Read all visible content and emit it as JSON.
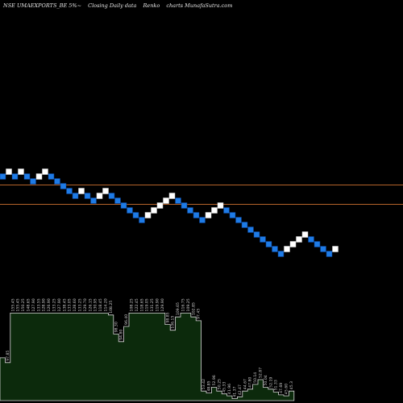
{
  "header": {
    "symbol": "NSE UMAEXPORTS_BE 5%~",
    "description": "Closing Daily data",
    "chart_kind": "Renko",
    "brand": "charts MunafaSutra.com"
  },
  "colors": {
    "background": "#000000",
    "up_brick": "#ffffff",
    "down_brick": "#1e7be6",
    "brick_edge": "#0a3d8a",
    "ref_line": "#b4632a",
    "volume_fill": "#0c2a0c",
    "volume_edge": "#d8d8d8",
    "label_text": "#d0d0d0"
  },
  "chart_data": {
    "type": "renko",
    "title": "NSE UMAEXPORTS_BE 5%~ Closing Daily data Renko charts MunafaSutra.com",
    "reference_lines": [
      {
        "name": "upper"
      },
      {
        "name": "lower"
      }
    ],
    "bricks": [
      {
        "i": 0,
        "level": 0,
        "dir": "down"
      },
      {
        "i": 1,
        "level": 1,
        "dir": "up"
      },
      {
        "i": 2,
        "level": 0,
        "dir": "down"
      },
      {
        "i": 3,
        "level": 1,
        "dir": "up"
      },
      {
        "i": 4,
        "level": 0,
        "dir": "down"
      },
      {
        "i": 5,
        "level": -1,
        "dir": "down"
      },
      {
        "i": 6,
        "level": 0,
        "dir": "up"
      },
      {
        "i": 7,
        "level": 1,
        "dir": "up"
      },
      {
        "i": 8,
        "level": 0,
        "dir": "down"
      },
      {
        "i": 9,
        "level": -1,
        "dir": "down"
      },
      {
        "i": 10,
        "level": -2,
        "dir": "down"
      },
      {
        "i": 11,
        "level": -3,
        "dir": "down"
      },
      {
        "i": 12,
        "level": -4,
        "dir": "down"
      },
      {
        "i": 13,
        "level": -3,
        "dir": "up"
      },
      {
        "i": 14,
        "level": -4,
        "dir": "down"
      },
      {
        "i": 15,
        "level": -5,
        "dir": "down"
      },
      {
        "i": 16,
        "level": -4,
        "dir": "up"
      },
      {
        "i": 17,
        "level": -3,
        "dir": "up"
      },
      {
        "i": 18,
        "level": -4,
        "dir": "down"
      },
      {
        "i": 19,
        "level": -5,
        "dir": "down"
      },
      {
        "i": 20,
        "level": -6,
        "dir": "down"
      },
      {
        "i": 21,
        "level": -7,
        "dir": "down"
      },
      {
        "i": 22,
        "level": -8,
        "dir": "down"
      },
      {
        "i": 23,
        "level": -9,
        "dir": "down"
      },
      {
        "i": 24,
        "level": -8,
        "dir": "up"
      },
      {
        "i": 25,
        "level": -7,
        "dir": "up"
      },
      {
        "i": 26,
        "level": -6,
        "dir": "up"
      },
      {
        "i": 27,
        "level": -5,
        "dir": "up"
      },
      {
        "i": 28,
        "level": -4,
        "dir": "up"
      },
      {
        "i": 29,
        "level": -5,
        "dir": "down"
      },
      {
        "i": 30,
        "level": -6,
        "dir": "down"
      },
      {
        "i": 31,
        "level": -7,
        "dir": "down"
      },
      {
        "i": 32,
        "level": -8,
        "dir": "down"
      },
      {
        "i": 33,
        "level": -9,
        "dir": "down"
      },
      {
        "i": 34,
        "level": -8,
        "dir": "up"
      },
      {
        "i": 35,
        "level": -7,
        "dir": "up"
      },
      {
        "i": 36,
        "level": -6,
        "dir": "up"
      },
      {
        "i": 37,
        "level": -7,
        "dir": "down"
      },
      {
        "i": 38,
        "level": -8,
        "dir": "down"
      },
      {
        "i": 39,
        "level": -9,
        "dir": "down"
      },
      {
        "i": 40,
        "level": -10,
        "dir": "down"
      },
      {
        "i": 41,
        "level": -11,
        "dir": "down"
      },
      {
        "i": 42,
        "level": -12,
        "dir": "down"
      },
      {
        "i": 43,
        "level": -13,
        "dir": "down"
      },
      {
        "i": 44,
        "level": -14,
        "dir": "down"
      },
      {
        "i": 45,
        "level": -15,
        "dir": "down"
      },
      {
        "i": 46,
        "level": -16,
        "dir": "down"
      },
      {
        "i": 47,
        "level": -15,
        "dir": "up"
      },
      {
        "i": 48,
        "level": -14,
        "dir": "up"
      },
      {
        "i": 49,
        "level": -13,
        "dir": "up"
      },
      {
        "i": 50,
        "level": -12,
        "dir": "up"
      },
      {
        "i": 51,
        "level": -13,
        "dir": "down"
      },
      {
        "i": 52,
        "level": -14,
        "dir": "down"
      },
      {
        "i": 53,
        "level": -15,
        "dir": "down"
      },
      {
        "i": 54,
        "level": -16,
        "dir": "down"
      },
      {
        "i": 55,
        "level": -15,
        "dir": "up"
      }
    ],
    "volume_steps": [
      {
        "v": 0.45,
        "label": ""
      },
      {
        "v": 0.4,
        "label": "97.85"
      },
      {
        "v": 0.92,
        "label": "155.45"
      },
      {
        "v": 0.92,
        "label": "155.45"
      },
      {
        "v": 0.92,
        "label": "150.25"
      },
      {
        "v": 0.92,
        "label": "148.65"
      },
      {
        "v": 0.92,
        "label": "127.90"
      },
      {
        "v": 0.92,
        "label": "133.55"
      },
      {
        "v": 0.92,
        "label": "128.90"
      },
      {
        "v": 0.92,
        "label": "126.90"
      },
      {
        "v": 0.92,
        "label": "133.25"
      },
      {
        "v": 0.92,
        "label": "127.90"
      },
      {
        "v": 0.92,
        "label": "138.45"
      },
      {
        "v": 0.92,
        "label": "133.05"
      },
      {
        "v": 0.92,
        "label": "128.60"
      },
      {
        "v": 0.92,
        "label": "133.25"
      },
      {
        "v": 0.92,
        "label": "129.70"
      },
      {
        "v": 0.92,
        "label": "126.15"
      },
      {
        "v": 0.92,
        "label": "130.95"
      },
      {
        "v": 0.92,
        "label": "118.45"
      },
      {
        "v": 0.92,
        "label": "114.20"
      },
      {
        "v": 0.9,
        "label": "108.25"
      },
      {
        "v": 0.7,
        "label": "98.30"
      },
      {
        "v": 0.62,
        "label": "94.80"
      },
      {
        "v": 0.78,
        "label": "96.40"
      },
      {
        "v": 0.92,
        "label": "108.25"
      },
      {
        "v": 0.92,
        "label": "122.45"
      },
      {
        "v": 0.92,
        "label": "118.65"
      },
      {
        "v": 0.92,
        "label": "119.05"
      },
      {
        "v": 0.92,
        "label": "131.25"
      },
      {
        "v": 0.92,
        "label": "119.90"
      },
      {
        "v": 0.92,
        "label": "129.90"
      },
      {
        "v": 0.8,
        "label": "98.85"
      },
      {
        "v": 0.74,
        "label": "106.15"
      },
      {
        "v": 0.88,
        "label": "109.65"
      },
      {
        "v": 0.92,
        "label": "116.75"
      },
      {
        "v": 0.92,
        "label": "109.25"
      },
      {
        "v": 0.88,
        "label": "102.85"
      },
      {
        "v": 0.84,
        "label": "97.45"
      },
      {
        "v": 0.1,
        "label": "53.42"
      },
      {
        "v": 0.08,
        "label": "48.85"
      },
      {
        "v": 0.14,
        "label": "52.96"
      },
      {
        "v": 0.1,
        "label": "50.25"
      },
      {
        "v": 0.07,
        "label": "45.33"
      },
      {
        "v": 0.05,
        "label": "41.96"
      },
      {
        "v": 0.02,
        "label": "41.37"
      },
      {
        "v": 0.04,
        "label": "42.47"
      },
      {
        "v": 0.1,
        "label": "44.67"
      },
      {
        "v": 0.12,
        "label": "47.80"
      },
      {
        "v": 0.17,
        "label": "50.14"
      },
      {
        "v": 0.22,
        "label": "52.87"
      },
      {
        "v": 0.14,
        "label": "50.04"
      },
      {
        "v": 0.12,
        "label": "52.19"
      },
      {
        "v": 0.09,
        "label": "51.33"
      },
      {
        "v": 0.06,
        "label": "47.69"
      },
      {
        "v": 0.05,
        "label": "45.60"
      },
      {
        "v": 0.1,
        "label": "45.3"
      }
    ]
  }
}
